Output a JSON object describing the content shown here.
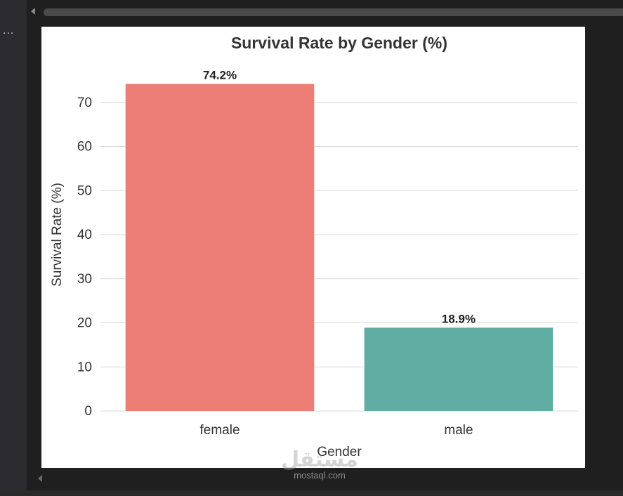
{
  "editor": {
    "overflow_menu": "...",
    "watermark_brand": "مستقل",
    "watermark_url": "mostaql.com"
  },
  "chart_data": {
    "type": "bar",
    "title": "Survival Rate by Gender (%)",
    "xlabel": "Gender",
    "ylabel": "Survival Rate (%)",
    "categories": [
      "female",
      "male"
    ],
    "values": [
      74.2,
      18.9
    ],
    "data_labels": [
      "74.2%",
      "18.9%"
    ],
    "colors": [
      "#ec7e75",
      "#5fada3"
    ],
    "ylim": [
      0,
      80
    ],
    "yticks": [
      0,
      10,
      20,
      30,
      40,
      50,
      60,
      70
    ],
    "grid": "horizontal",
    "legend": "none"
  }
}
